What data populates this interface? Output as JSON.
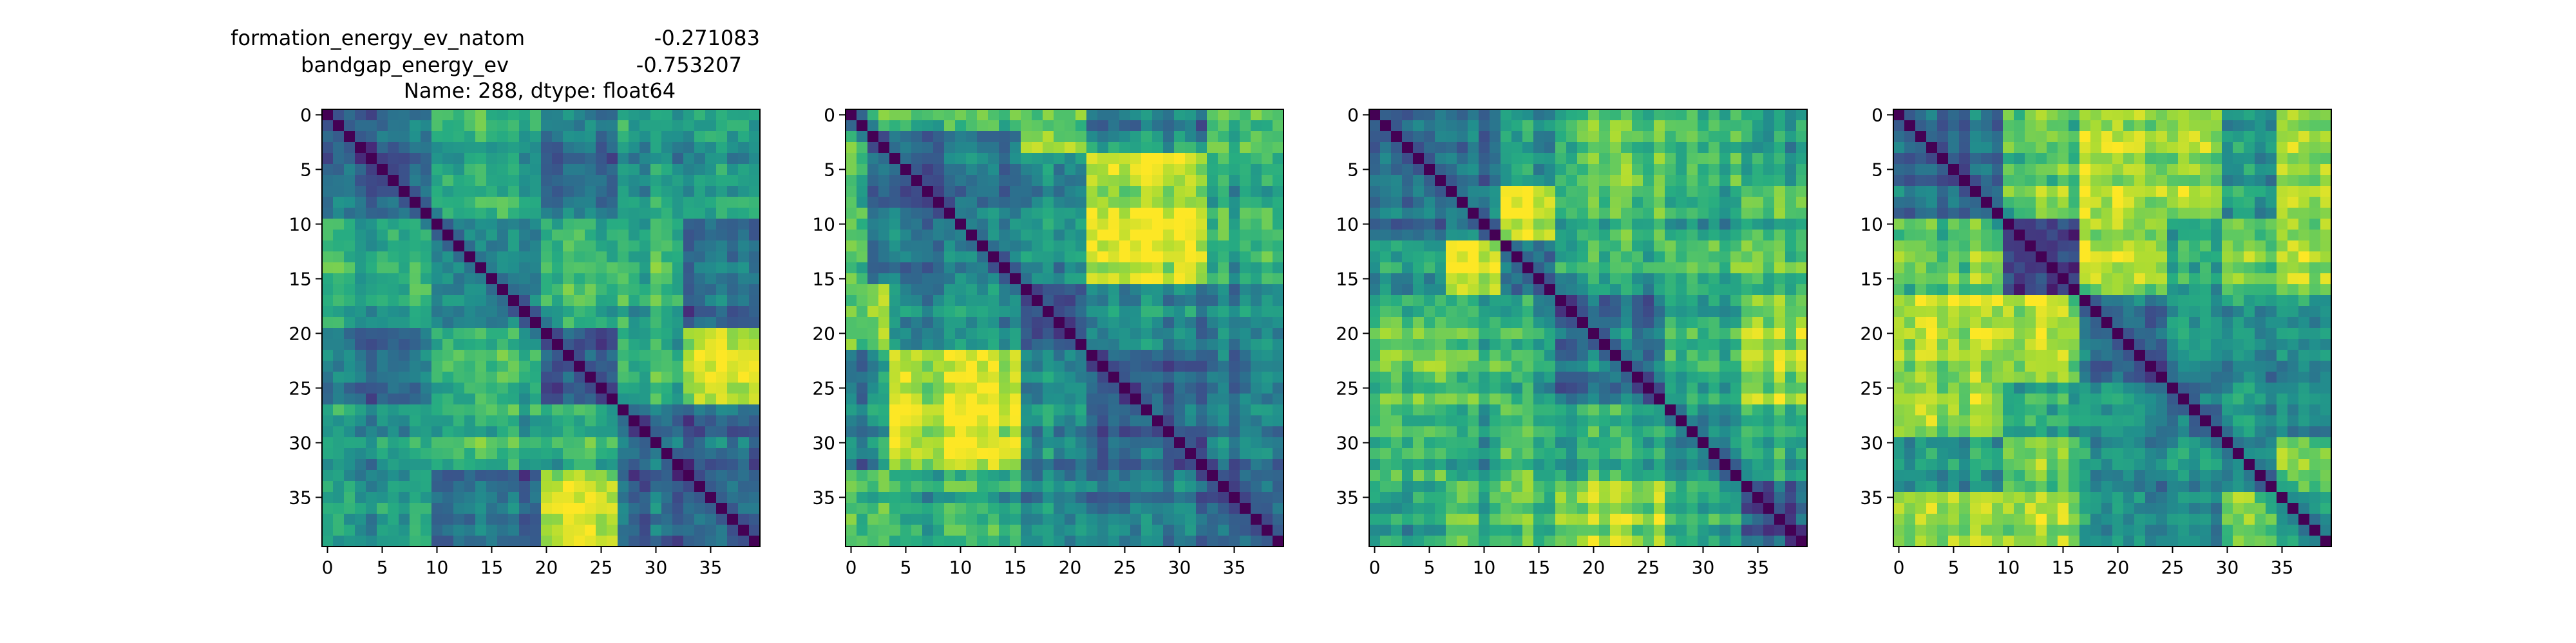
{
  "chart_data": [
    {
      "type": "heatmap",
      "panel": 1,
      "colormap": "viridis",
      "matrix_size": 40,
      "diagonal_value": "minimum",
      "title_lines": [
        {
          "label": "formation_energy_ev_natom",
          "value": "-0.271083"
        },
        {
          "label": "bandgap_energy_ev",
          "value": "-0.753207"
        },
        {
          "text": "Name: 288, dtype: float64"
        }
      ],
      "xticks": [
        "0",
        "5",
        "10",
        "15",
        "20",
        "25",
        "30",
        "35"
      ],
      "yticks": [
        "0",
        "5",
        "10",
        "15",
        "20",
        "25",
        "30",
        "35"
      ],
      "xlim": [
        0,
        39
      ],
      "ylim": [
        39,
        0
      ],
      "grid": false
    },
    {
      "type": "heatmap",
      "panel": 2,
      "colormap": "viridis",
      "matrix_size": 40,
      "diagonal_value": "minimum",
      "xticks": [
        "0",
        "5",
        "10",
        "15",
        "20",
        "25",
        "30",
        "35"
      ],
      "yticks": [
        "0",
        "5",
        "10",
        "15",
        "20",
        "25",
        "30",
        "35"
      ],
      "xlim": [
        0,
        39
      ],
      "ylim": [
        39,
        0
      ],
      "grid": false
    },
    {
      "type": "heatmap",
      "panel": 3,
      "colormap": "viridis",
      "matrix_size": 40,
      "diagonal_value": "minimum",
      "xticks": [
        "0",
        "5",
        "10",
        "15",
        "20",
        "25",
        "30",
        "35"
      ],
      "yticks": [
        "0",
        "5",
        "10",
        "15",
        "20",
        "25",
        "30",
        "35"
      ],
      "xlim": [
        0,
        39
      ],
      "ylim": [
        39,
        0
      ],
      "grid": false
    },
    {
      "type": "heatmap",
      "panel": 4,
      "colormap": "viridis",
      "matrix_size": 40,
      "diagonal_value": "minimum",
      "xticks": [
        "0",
        "5",
        "10",
        "15",
        "20",
        "25",
        "30",
        "35"
      ],
      "yticks": [
        "0",
        "5",
        "10",
        "15",
        "20",
        "25",
        "30",
        "35"
      ],
      "xlim": [
        0,
        39
      ],
      "ylim": [
        39,
        0
      ],
      "grid": false
    }
  ]
}
